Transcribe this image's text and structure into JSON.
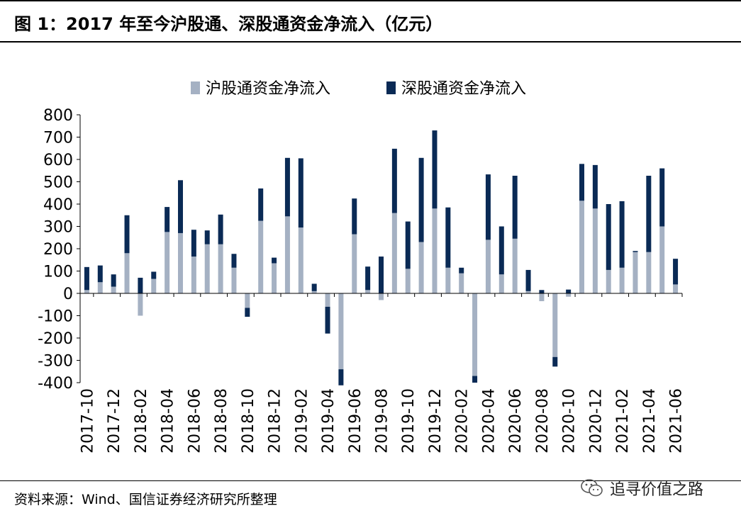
{
  "header": {
    "title": "图 1：2017 年至今沪股通、深股通资金净流入（亿元）"
  },
  "footer": {
    "source": "资料来源：Wind、国信证券经济研究所整理"
  },
  "watermark": {
    "text": "追寻价值之路",
    "icon": "wechat-icon"
  },
  "colors": {
    "sh": "#a5b1c3",
    "sz": "#0a2a55",
    "axis": "#000000"
  },
  "chart_data": {
    "type": "bar",
    "stacked": true,
    "title": "",
    "xlabel": "",
    "ylabel": "",
    "ylim": [
      -400,
      800
    ],
    "yticks": [
      800,
      700,
      600,
      500,
      400,
      300,
      200,
      100,
      0,
      -100,
      -200,
      -300,
      -400
    ],
    "grid": false,
    "legend_position": "top",
    "categories": [
      "2017-10",
      "2017-11",
      "2017-12",
      "2018-01",
      "2018-02",
      "2018-03",
      "2018-04",
      "2018-05",
      "2018-06",
      "2018-07",
      "2018-08",
      "2018-09",
      "2018-10",
      "2018-11",
      "2018-12",
      "2019-01",
      "2019-02",
      "2019-03",
      "2019-04",
      "2019-05",
      "2019-06",
      "2019-07",
      "2019-08",
      "2019-09",
      "2019-10",
      "2019-11",
      "2019-12",
      "2020-01",
      "2020-02",
      "2020-03",
      "2020-04",
      "2020-05",
      "2020-06",
      "2020-07",
      "2020-08",
      "2020-09",
      "2020-10",
      "2020-11",
      "2020-12",
      "2021-01",
      "2021-02",
      "2021-03",
      "2021-04",
      "2021-05",
      "2021-06"
    ],
    "tick_labels": [
      "2017-10",
      "2017-12",
      "2018-02",
      "2018-04",
      "2018-06",
      "2018-08",
      "2018-10",
      "2018-12",
      "2019-02",
      "2019-04",
      "2019-06",
      "2019-08",
      "2019-10",
      "2019-12",
      "2020-02",
      "2020-04",
      "2020-06",
      "2020-08",
      "2020-10",
      "2020-12",
      "2021-02",
      "2021-04",
      "2021-06"
    ],
    "series": [
      {
        "name": "沪股通资金净流入",
        "values": [
          15,
          50,
          30,
          180,
          -100,
          65,
          275,
          270,
          165,
          220,
          220,
          115,
          -65,
          325,
          135,
          345,
          295,
          10,
          -60,
          -340,
          265,
          15,
          -30,
          360,
          110,
          230,
          380,
          115,
          90,
          -370,
          240,
          85,
          245,
          10,
          -35,
          -285,
          -15,
          415,
          380,
          105,
          115,
          185,
          185,
          300,
          40
        ]
      },
      {
        "name": "深股通资金净流入",
        "values": [
          103,
          75,
          55,
          170,
          70,
          32,
          112,
          237,
          120,
          62,
          133,
          62,
          -40,
          145,
          25,
          262,
          310,
          33,
          -120,
          -72,
          160,
          105,
          165,
          288,
          212,
          377,
          350,
          270,
          25,
          -30,
          293,
          215,
          282,
          95,
          15,
          -43,
          17,
          165,
          195,
          295,
          298,
          5,
          342,
          260,
          115
        ]
      }
    ]
  }
}
